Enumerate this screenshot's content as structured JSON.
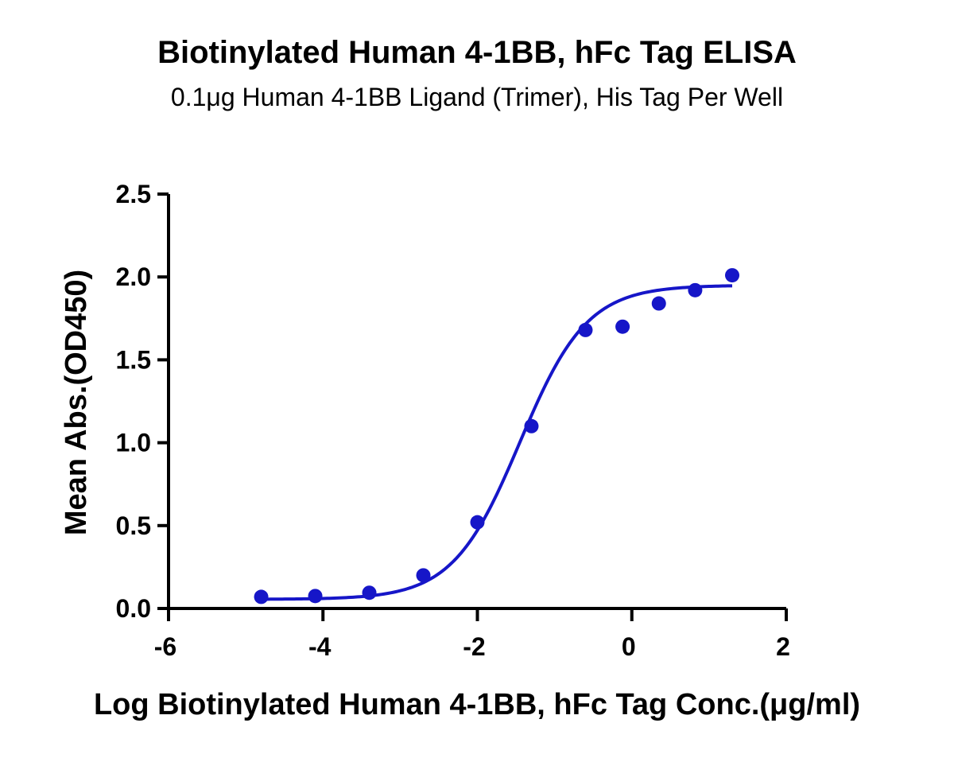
{
  "chart_data": {
    "type": "scatter",
    "title": "Biotinylated Human 4-1BB, hFc Tag ELISA",
    "subtitle": "0.1μg Human 4-1BB Ligand (Trimer), His Tag Per Well",
    "xlabel": "Log Biotinylated Human 4-1BB, hFc Tag Conc.(μg/ml)",
    "ylabel": "Mean Abs.(OD450)",
    "xlim": [
      -6,
      2
    ],
    "ylim": [
      0,
      2.5
    ],
    "x_ticks": [
      "-6",
      "-4",
      "-2",
      "0",
      "2"
    ],
    "x_tick_values": [
      -6,
      -4,
      -2,
      0,
      2
    ],
    "y_ticks": [
      "0.0",
      "0.5",
      "1.0",
      "1.5",
      "2.0",
      "2.5"
    ],
    "y_tick_values": [
      0,
      0.5,
      1.0,
      1.5,
      2.0,
      2.5
    ],
    "grid": false,
    "color": "#1616c8",
    "series": [
      {
        "x": [
          -4.8,
          -4.1,
          -3.4,
          -2.7,
          -2.0,
          -1.3,
          -0.6,
          -0.12,
          0.35,
          0.82,
          1.3
        ],
        "y": [
          0.07,
          0.075,
          0.095,
          0.2,
          0.52,
          1.1,
          1.68,
          1.7,
          1.84,
          1.92,
          2.01
        ]
      }
    ],
    "fit_curve": {
      "model": "4PL",
      "bottom": 0.055,
      "top": 1.95,
      "log_ec50": -1.45,
      "hill_slope": 1.0,
      "x_range": [
        -4.8,
        1.3
      ]
    }
  }
}
